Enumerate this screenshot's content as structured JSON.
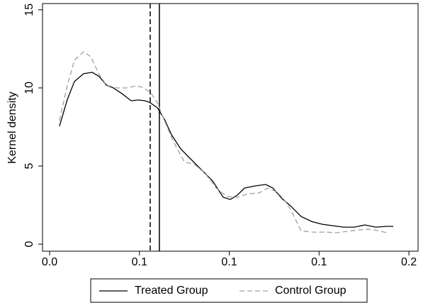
{
  "chart_data": {
    "type": "line",
    "y_label": "Kernel density",
    "xlim": [
      -0.00394,
      0.2051
    ],
    "ylim": [
      -0.45,
      15.4
    ],
    "xticks": [
      {
        "value": 0,
        "label": "0.0"
      },
      {
        "value": 0.05,
        "label": "0.1"
      },
      0.1,
      {
        "value": 0.15,
        "label": "0.1"
      },
      0.2
    ],
    "yticks": [
      0,
      5,
      10,
      15
    ],
    "grid": false,
    "legend": "bottom",
    "vlines": [
      {
        "x": 0.056,
        "style": "dashed",
        "color": "#000000"
      },
      {
        "x": 0.0611,
        "style": "solid",
        "color": "#000000"
      }
    ],
    "series": [
      {
        "name": "Treated Group",
        "color": "#000000",
        "style": "solid",
        "x": [
          0.0055,
          0.0099,
          0.0138,
          0.0189,
          0.0237,
          0.0276,
          0.0316,
          0.0355,
          0.0402,
          0.0454,
          0.0493,
          0.0532,
          0.056,
          0.06,
          0.0639,
          0.0679,
          0.073,
          0.0789,
          0.0848,
          0.0907,
          0.0966,
          0.1006,
          0.1045,
          0.1085,
          0.1144,
          0.1203,
          0.1243,
          0.1294,
          0.1341,
          0.14,
          0.146,
          0.1519,
          0.1578,
          0.1637,
          0.1696,
          0.1755,
          0.1815,
          0.1874,
          0.1913
        ],
        "values": [
          7.55,
          9.27,
          10.41,
          10.91,
          11.0,
          10.73,
          10.18,
          10.0,
          9.64,
          9.18,
          9.23,
          9.18,
          9.05,
          8.73,
          8.0,
          7.0,
          6.09,
          5.41,
          4.73,
          4.05,
          3.0,
          2.86,
          3.14,
          3.59,
          3.73,
          3.82,
          3.59,
          2.91,
          2.45,
          1.77,
          1.45,
          1.27,
          1.18,
          1.09,
          1.09,
          1.23,
          1.09,
          1.14,
          1.14
        ]
      },
      {
        "name": "Control Group",
        "color": "#a0a0a0",
        "style": "dashed",
        "x": [
          0.0055,
          0.0099,
          0.0138,
          0.0189,
          0.0229,
          0.0276,
          0.0316,
          0.0375,
          0.0434,
          0.0481,
          0.0513,
          0.056,
          0.06,
          0.0639,
          0.069,
          0.075,
          0.0809,
          0.0868,
          0.0927,
          0.0986,
          0.1045,
          0.1105,
          0.1164,
          0.1215,
          0.1262,
          0.1302,
          0.1341,
          0.14,
          0.146,
          0.1538,
          0.1598,
          0.1657,
          0.1716,
          0.1775,
          0.1834,
          0.1874
        ],
        "values": [
          7.91,
          10.18,
          11.77,
          12.32,
          12.0,
          10.86,
          10.18,
          10.0,
          10.0,
          10.14,
          10.05,
          9.73,
          9.05,
          7.91,
          6.55,
          5.27,
          5.09,
          4.5,
          3.59,
          3.05,
          3.0,
          3.23,
          3.27,
          3.59,
          3.36,
          2.91,
          2.23,
          0.86,
          0.77,
          0.77,
          0.73,
          0.82,
          0.91,
          0.95,
          0.86,
          0.73
        ]
      }
    ]
  }
}
